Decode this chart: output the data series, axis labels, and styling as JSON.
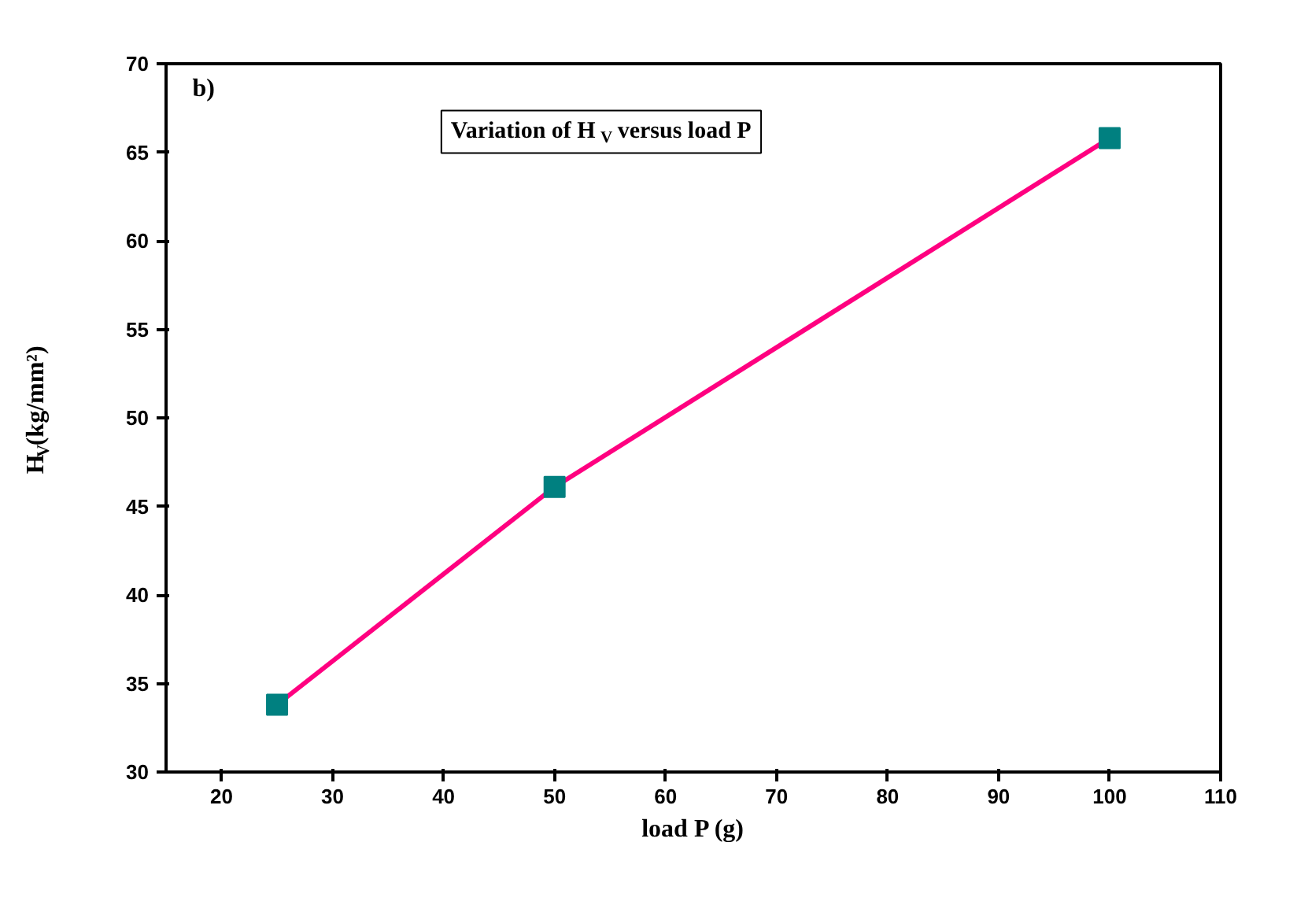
{
  "chart_data": {
    "type": "line",
    "title": "Variation of H$_{V}$ versus load P",
    "xlabel": "load P (g)",
    "ylabel": "H$_{V}$(kg/mm²)",
    "annotations": [
      "b)"
    ],
    "x": [
      25,
      50,
      100
    ],
    "series": [
      {
        "color": "#ff0080",
        "values": [
          33.8,
          46.1,
          65.8
        ]
      }
    ],
    "marker": "square",
    "xlim": [
      15,
      110
    ],
    "xticks": [
      20,
      30,
      40,
      50,
      60,
      70,
      80,
      90,
      100,
      110
    ],
    "ylim": [
      30,
      70
    ],
    "yticks": [
      30,
      35,
      40,
      45,
      50,
      55,
      60,
      65,
      70
    ],
    "grid": false
  }
}
